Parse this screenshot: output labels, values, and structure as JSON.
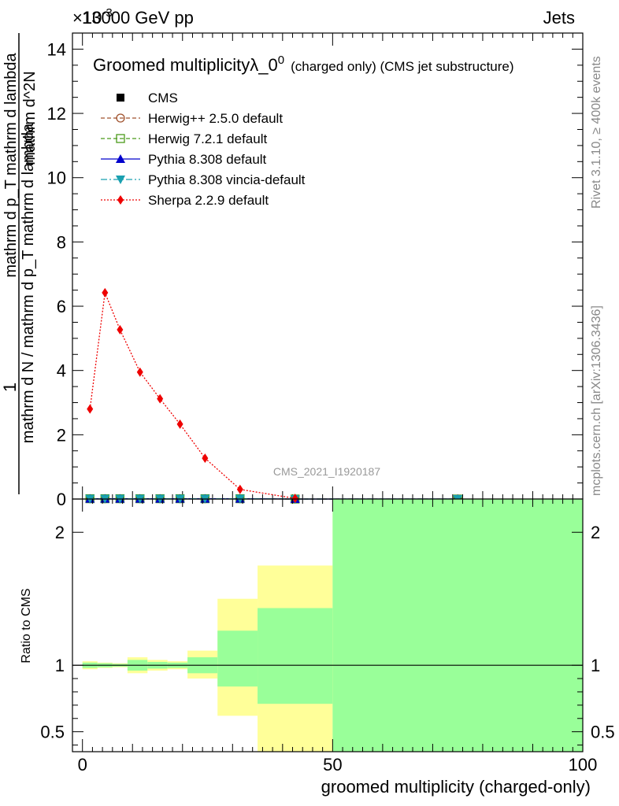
{
  "header": {
    "energy_label": "13000 GeV pp",
    "category_label": "Jets",
    "exponent_label": "×10",
    "exponent_power": "-3"
  },
  "side_labels": {
    "rivet": "Rivet 3.1.10, ≥ 400k events",
    "mcplots": "mcplots.cern.ch [arXiv:1306.3436]"
  },
  "watermark": "CMS_2021_I1920187",
  "colors": {
    "cms": "#000000",
    "herwigpp": "#a0522d",
    "herwig7": "#4a9a1a",
    "pythia": "#0000cc",
    "vincia": "#1aa0b0",
    "sherpa": "#ee0000",
    "band_outer": "#ffff99",
    "band_inner": "#99ff99"
  },
  "chart_data": [
    {
      "type": "line",
      "title": "Groomed multiplicityλ_0",
      "title_superscript": "0",
      "title_suffix": "(charged only) (CMS jet substructure)",
      "ylabel_numerator": "1",
      "ylabel_denominator": "mathrm d N / mathrm d p_T mathrm d lambda",
      "ylabel_main": "mathrm d^2N",
      "ylabel_sub": "mathrm d p_T mathrm d lambda",
      "xlabel": "groomed multiplicity (charged-only)",
      "xlim": [
        -2,
        100
      ],
      "ylim": [
        0,
        14.5
      ],
      "y_ticks": [
        "0",
        "2",
        "4",
        "6",
        "8",
        "10",
        "12",
        "14"
      ],
      "legend_position": "top-left",
      "series": [
        {
          "name": "CMS",
          "marker": "square",
          "x": [
            1.5,
            4.5,
            7.5,
            11.5,
            15.5,
            19.5,
            24.5,
            31.5,
            42.5,
            75
          ],
          "y": [
            0.01,
            0.01,
            0.01,
            0.01,
            0.01,
            0.01,
            0.01,
            0.01,
            0.0,
            0.0
          ]
        },
        {
          "name": "Herwig++ 2.5.0 default",
          "marker": "open-circle",
          "x": [
            1.5,
            4.5,
            7.5,
            11.5,
            15.5,
            19.5,
            24.5,
            31.5,
            42.5,
            75
          ],
          "y": [
            0.01,
            0.01,
            0.01,
            0.01,
            0.01,
            0.01,
            0.01,
            0.01,
            0.0,
            0.0
          ]
        },
        {
          "name": "Herwig 7.2.1 default",
          "marker": "open-square",
          "x": [
            1.5,
            4.5,
            7.5,
            11.5,
            15.5,
            19.5,
            24.5,
            31.5,
            42.5,
            75
          ],
          "y": [
            0.01,
            0.01,
            0.01,
            0.01,
            0.01,
            0.01,
            0.01,
            0.01,
            0.0,
            0.0
          ]
        },
        {
          "name": "Pythia 8.308 default",
          "marker": "triangle-up",
          "x": [
            1.5,
            4.5,
            7.5,
            11.5,
            15.5,
            19.5,
            24.5,
            31.5,
            42.5,
            75
          ],
          "y": [
            0.01,
            0.01,
            0.01,
            0.01,
            0.01,
            0.01,
            0.01,
            0.01,
            0.0,
            0.0
          ]
        },
        {
          "name": "Pythia 8.308 vincia-default",
          "marker": "triangle-down",
          "x": [
            1.5,
            4.5,
            7.5,
            11.5,
            15.5,
            19.5,
            24.5,
            31.5,
            42.5,
            75
          ],
          "y": [
            0.01,
            0.01,
            0.01,
            0.01,
            0.01,
            0.01,
            0.01,
            0.01,
            0.0,
            0.0
          ]
        },
        {
          "name": "Sherpa 2.2.9 default",
          "marker": "diamond",
          "x": [
            1.5,
            4.5,
            7.5,
            11.5,
            15.5,
            19.5,
            24.5,
            31.5,
            42.5
          ],
          "y": [
            2.8,
            6.42,
            5.27,
            3.95,
            3.12,
            2.33,
            1.27,
            0.3,
            0.02
          ]
        }
      ]
    },
    {
      "type": "area",
      "ylabel": "Ratio to CMS",
      "xlabel": "groomed multiplicity (charged-only)",
      "xlim": [
        -2,
        100
      ],
      "ylim": [
        0.35,
        2.25
      ],
      "x_ticks": [
        "0",
        "50",
        "100"
      ],
      "y_ticks": [
        "0.5",
        "1",
        "2"
      ],
      "reference_line": 1,
      "bands": [
        {
          "x0": 0,
          "x1": 3,
          "outer": [
            0.97,
            1.03
          ],
          "inner": [
            0.98,
            1.02
          ]
        },
        {
          "x0": 3,
          "x1": 6,
          "outer": [
            0.98,
            1.02
          ],
          "inner": [
            0.985,
            1.015
          ]
        },
        {
          "x0": 6,
          "x1": 9,
          "outer": [
            0.985,
            1.015
          ],
          "inner": [
            0.99,
            1.01
          ]
        },
        {
          "x0": 9,
          "x1": 13,
          "outer": [
            0.94,
            1.06
          ],
          "inner": [
            0.96,
            1.04
          ]
        },
        {
          "x0": 13,
          "x1": 17,
          "outer": [
            0.96,
            1.04
          ],
          "inner": [
            0.975,
            1.025
          ]
        },
        {
          "x0": 17,
          "x1": 21,
          "outer": [
            0.97,
            1.03
          ],
          "inner": [
            0.98,
            1.02
          ]
        },
        {
          "x0": 21,
          "x1": 27,
          "outer": [
            0.9,
            1.11
          ],
          "inner": [
            0.94,
            1.06
          ]
        },
        {
          "x0": 27,
          "x1": 35,
          "outer": [
            0.62,
            1.5
          ],
          "inner": [
            0.84,
            1.26
          ]
        },
        {
          "x0": 35,
          "x1": 50,
          "outer": [
            0.3,
            1.75
          ],
          "inner": [
            0.71,
            1.43
          ]
        },
        {
          "x0": 50,
          "x1": 100,
          "outer": [
            0.3,
            2.3
          ],
          "inner": [
            0.3,
            2.3
          ]
        }
      ]
    }
  ]
}
